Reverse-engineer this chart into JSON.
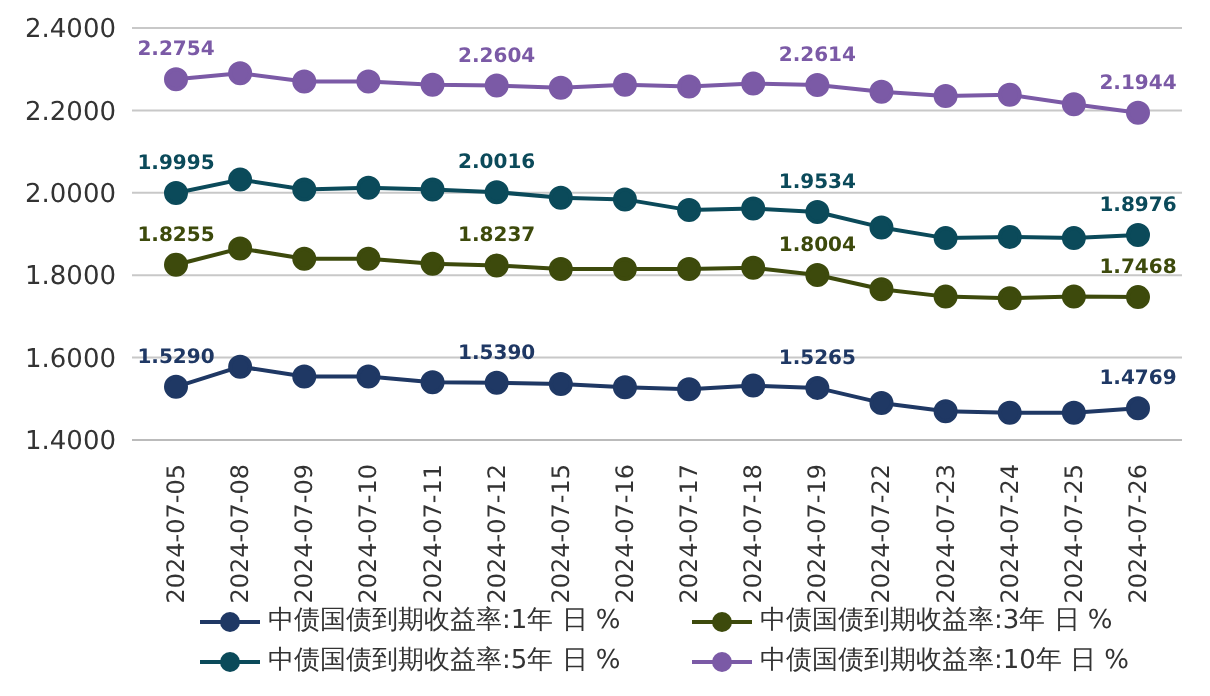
{
  "chart_data": {
    "type": "line",
    "categories": [
      "2024-07-05",
      "2024-07-08",
      "2024-07-09",
      "2024-07-10",
      "2024-07-11",
      "2024-07-12",
      "2024-07-15",
      "2024-07-16",
      "2024-07-17",
      "2024-07-18",
      "2024-07-19",
      "2024-07-22",
      "2024-07-23",
      "2024-07-24",
      "2024-07-25",
      "2024-07-26"
    ],
    "series": [
      {
        "name": "中债国债到期收益率:1年 日 %",
        "color": "#1f3864",
        "values": [
          1.529,
          1.578,
          1.554,
          1.554,
          1.54,
          1.539,
          1.536,
          1.528,
          1.523,
          1.532,
          1.5265,
          1.49,
          1.47,
          1.466,
          1.466,
          1.4769
        ],
        "value_labels": [
          "1.5290",
          null,
          null,
          null,
          null,
          "1.5390",
          null,
          null,
          null,
          null,
          "1.5265",
          null,
          null,
          null,
          null,
          "1.4769"
        ]
      },
      {
        "name": "中债国债到期收益率:3年 日 %",
        "color": "#3d4a0c",
        "values": [
          1.8255,
          1.865,
          1.84,
          1.84,
          1.828,
          1.8237,
          1.815,
          1.815,
          1.815,
          1.818,
          1.8004,
          1.766,
          1.748,
          1.744,
          1.748,
          1.7468
        ],
        "value_labels": [
          "1.8255",
          null,
          null,
          null,
          null,
          "1.8237",
          null,
          null,
          null,
          null,
          "1.8004",
          null,
          null,
          null,
          null,
          "1.7468"
        ]
      },
      {
        "name": "中债国债到期收益率:5年 日 %",
        "color": "#0b4a5a",
        "values": [
          1.9995,
          2.032,
          2.008,
          2.012,
          2.008,
          2.0016,
          1.988,
          1.984,
          1.958,
          1.962,
          1.9534,
          1.916,
          1.89,
          1.893,
          1.89,
          1.8976
        ],
        "value_labels": [
          "1.9995",
          null,
          null,
          null,
          null,
          "2.0016",
          null,
          null,
          null,
          null,
          "1.9534",
          null,
          null,
          null,
          null,
          "1.8976"
        ]
      },
      {
        "name": "中债国债到期收益率:10年 日 %",
        "color": "#7b5aa6",
        "values": [
          2.2754,
          2.29,
          2.27,
          2.27,
          2.262,
          2.2604,
          2.255,
          2.262,
          2.258,
          2.265,
          2.2614,
          2.245,
          2.235,
          2.238,
          2.215,
          2.1944
        ],
        "value_labels": [
          "2.2754",
          null,
          null,
          null,
          null,
          "2.2604",
          null,
          null,
          null,
          null,
          "2.2614",
          null,
          null,
          null,
          null,
          "2.1944"
        ]
      }
    ],
    "ylim": [
      1.4,
      2.4
    ],
    "yticks": [
      {
        "value": 1.4,
        "label": "1.4000"
      },
      {
        "value": 1.6,
        "label": "1.6000"
      },
      {
        "value": 1.8,
        "label": "1.8000"
      },
      {
        "value": 2.0,
        "label": "2.0000"
      },
      {
        "value": 2.2,
        "label": "2.2000"
      },
      {
        "value": 2.4,
        "label": "2.4000"
      }
    ],
    "grid": "y",
    "legend": "bottom",
    "marker": "circle",
    "line_style": "solid"
  }
}
